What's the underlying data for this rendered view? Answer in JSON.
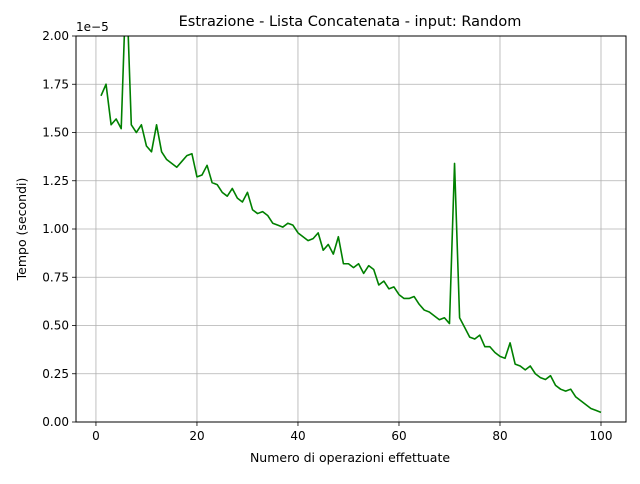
{
  "chart_data": {
    "type": "line",
    "title": "Estrazione - Lista Concatenata - input: Random",
    "xlabel": "Numero di operazioni effettuate",
    "ylabel": "Tempo (secondi)",
    "offset_text": "1e−5",
    "xlim": [
      -3.95,
      104.95
    ],
    "ylim": [
      0,
      2.0
    ],
    "y_scale_note": "values in units of 1e-5 seconds",
    "grid": true,
    "line_color": "#008000",
    "x_ticks": [
      0,
      20,
      40,
      60,
      80,
      100
    ],
    "x_tick_labels": [
      "0",
      "20",
      "40",
      "60",
      "80",
      "100"
    ],
    "y_ticks": [
      0,
      0.25,
      0.5,
      0.75,
      1.0,
      1.25,
      1.5,
      1.75,
      2.0
    ],
    "y_tick_labels": [
      "0.00",
      "0.25",
      "0.50",
      "0.75",
      "1.00",
      "1.25",
      "1.50",
      "1.75",
      "2.00"
    ],
    "series": [
      {
        "x": [
          1,
          2,
          3,
          4,
          5,
          6,
          7,
          8,
          9,
          10,
          11,
          12,
          13,
          14,
          15,
          16,
          17,
          18,
          19,
          20,
          21,
          22,
          23,
          24,
          25,
          26,
          27,
          28,
          29,
          30,
          31,
          32,
          33,
          34,
          35,
          36,
          37,
          38,
          39,
          40,
          41,
          42,
          43,
          44,
          45,
          46,
          47,
          48,
          49,
          50,
          51,
          52,
          53,
          54,
          55,
          56,
          57,
          58,
          59,
          60,
          61,
          62,
          63,
          64,
          65,
          66,
          67,
          68,
          69,
          70,
          71,
          72,
          73,
          74,
          75,
          76,
          77,
          78,
          79,
          80,
          81,
          82,
          83,
          84,
          85,
          86,
          87,
          88,
          89,
          90,
          91,
          92,
          93,
          94,
          95,
          96,
          97,
          98,
          99,
          100
        ],
        "y": [
          1.69,
          1.75,
          1.54,
          1.57,
          1.52,
          2.3,
          1.54,
          1.5,
          1.54,
          1.43,
          1.4,
          1.54,
          1.4,
          1.36,
          1.34,
          1.32,
          1.35,
          1.38,
          1.39,
          1.27,
          1.28,
          1.33,
          1.24,
          1.23,
          1.19,
          1.17,
          1.21,
          1.16,
          1.14,
          1.19,
          1.1,
          1.08,
          1.09,
          1.07,
          1.03,
          1.02,
          1.01,
          1.03,
          1.02,
          0.98,
          0.96,
          0.94,
          0.95,
          0.98,
          0.89,
          0.92,
          0.87,
          0.96,
          0.82,
          0.82,
          0.8,
          0.82,
          0.77,
          0.81,
          0.79,
          0.71,
          0.73,
          0.69,
          0.7,
          0.66,
          0.64,
          0.64,
          0.65,
          0.61,
          0.58,
          0.57,
          0.55,
          0.53,
          0.54,
          0.51,
          1.34,
          0.54,
          0.49,
          0.44,
          0.43,
          0.45,
          0.39,
          0.39,
          0.36,
          0.34,
          0.33,
          0.41,
          0.3,
          0.29,
          0.27,
          0.29,
          0.25,
          0.23,
          0.22,
          0.24,
          0.19,
          0.17,
          0.16,
          0.17,
          0.13,
          0.11,
          0.09,
          0.07,
          0.06,
          0.05
        ]
      }
    ]
  }
}
